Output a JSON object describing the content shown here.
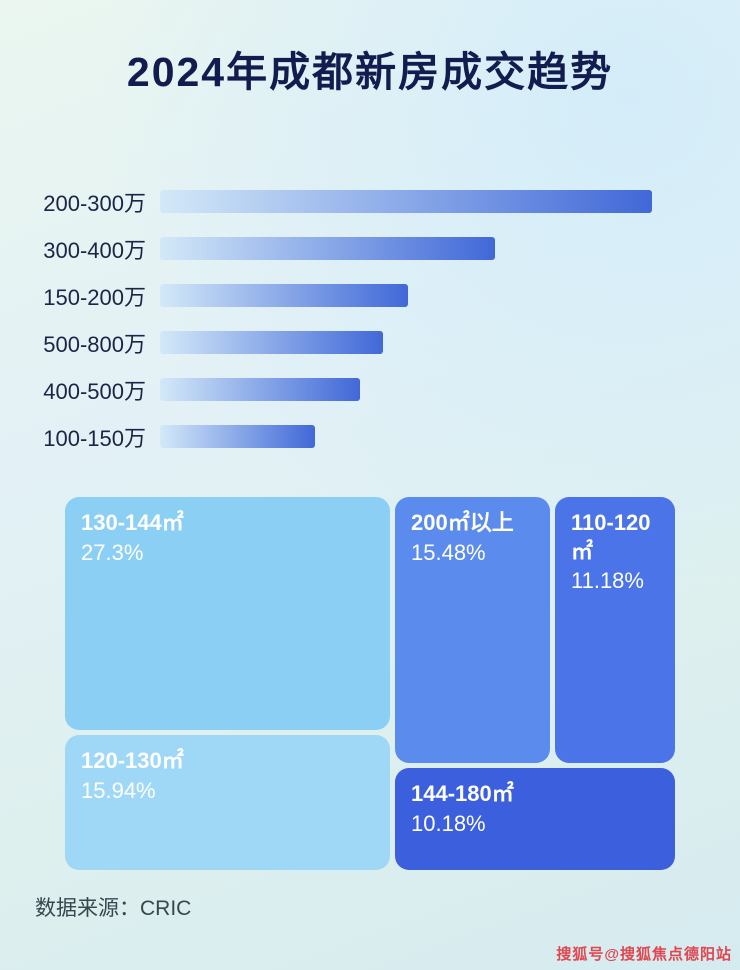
{
  "title": "2024年成都新房成交趋势",
  "chart_data": [
    {
      "type": "bar",
      "orientation": "horizontal",
      "title": "2024年成都新房成交趋势",
      "categories": [
        "200-300万",
        "300-400万",
        "150-200万",
        "500-800万",
        "400-500万",
        "100-150万"
      ],
      "values": [
        100,
        68,
        50.5,
        45.4,
        40.6,
        31.5
      ],
      "value_unit": "estimated bar length as % of longest bar (no numeric labels shown in image)",
      "xlabel": "",
      "ylabel": "",
      "grid": false,
      "legend": false
    },
    {
      "type": "treemap",
      "title": "",
      "items": [
        {
          "label": "130-144㎡",
          "value_label": "27.3%",
          "value": 27.3
        },
        {
          "label": "120-130㎡",
          "value_label": "15.94%",
          "value": 15.94
        },
        {
          "label": "200㎡以上",
          "value_label": "15.48%",
          "value": 15.48
        },
        {
          "label": "110-120㎡",
          "value_label": "11.18%",
          "value": 11.18
        },
        {
          "label": "144-180㎡",
          "value_label": "10.18%",
          "value": 10.18
        }
      ]
    }
  ],
  "footer": {
    "source": "数据来源：CRIC"
  },
  "watermark": "搜狐号@搜狐焦点德阳站",
  "colors": {
    "title_text": "#121c4f",
    "category_text": "#1c2547",
    "bar_gradient_start": "#d3e9f8",
    "bar_gradient_end": "#4168d8",
    "block_text": "#ffffff",
    "source_text": "#37474f",
    "watermark_text": "#e0474f",
    "blocks": {
      "b130_144": "#8bcff4",
      "b120_130": "#9fd8f7",
      "b200_plus": "#5c8bee",
      "b110_120": "#4b74e8",
      "b144_180": "#3c5fde"
    }
  }
}
